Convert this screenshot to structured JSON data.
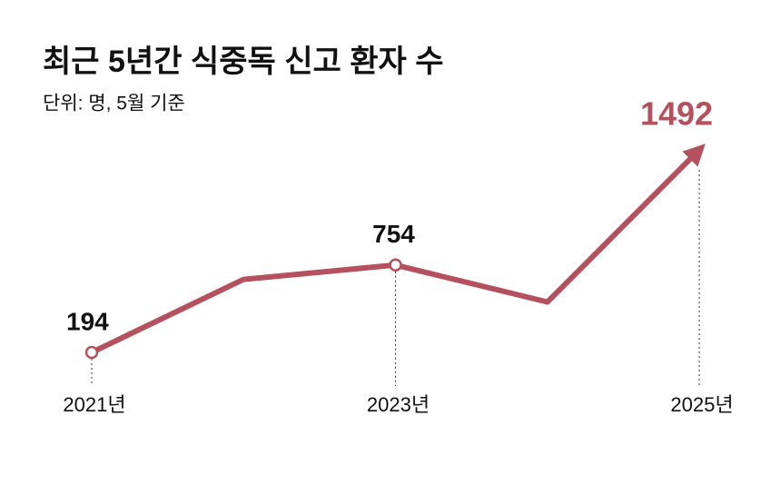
{
  "chart_data": {
    "type": "line",
    "title": "최근 5년간 식중독 신고 환자 수",
    "subtitle": "단위: 명, 5월 기준",
    "categories": [
      "2021년",
      null,
      "2023년",
      null,
      "2025년"
    ],
    "series": [
      {
        "name": "식중독 신고 환자 수",
        "color": "#b5505f",
        "values": [
          194,
          662,
          754,
          517,
          1492
        ]
      }
    ],
    "grid": false
  }
}
